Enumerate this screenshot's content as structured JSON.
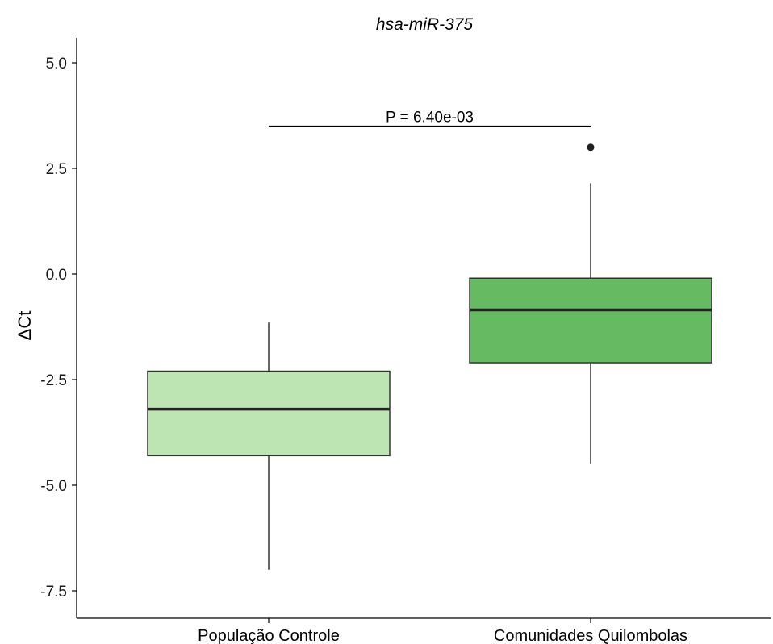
{
  "chart_data": {
    "type": "box",
    "title": "hsa-miR-375",
    "xlabel": "",
    "ylabel": "ΔCt",
    "ylim": [
      -8.0,
      5.6
    ],
    "yticks": [
      {
        "value": 5.0,
        "label": "5.0"
      },
      {
        "value": 2.5,
        "label": "2.5"
      },
      {
        "value": 0.0,
        "label": "0.0"
      },
      {
        "value": -2.5,
        "label": "-2.5"
      },
      {
        "value": -5.0,
        "label": "-5.0"
      },
      {
        "value": -7.5,
        "label": "-7.5"
      }
    ],
    "grid": false,
    "legend": "none",
    "categories": [
      "População Controle",
      "Comunidades Quilombolas"
    ],
    "boxes": [
      {
        "category": "População Controle",
        "whisker_low": -7.0,
        "q1": -4.3,
        "median": -3.2,
        "q3": -2.3,
        "whisker_high": -1.15,
        "outliers": [],
        "color": "#bde5b3"
      },
      {
        "category": "Comunidades Quilombolas",
        "whisker_low": -4.5,
        "q1": -2.1,
        "median": -0.85,
        "q3": -0.1,
        "whisker_high": 2.15,
        "outliers": [
          3.0
        ],
        "color": "#66bb62"
      }
    ],
    "annotation": {
      "text": "P = 6.40e-03",
      "y": 3.5,
      "from": "População Controle",
      "to": "Comunidades Quilombolas"
    }
  }
}
